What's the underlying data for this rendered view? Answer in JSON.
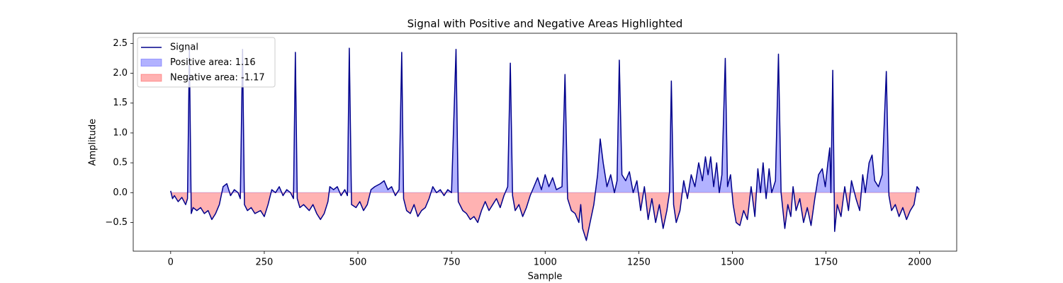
{
  "chart_data": {
    "type": "line",
    "title": "Signal with Positive and Negative Areas Highlighted",
    "x_label": "Sample",
    "y_label": "Amplitude",
    "x": [
      0,
      5,
      10,
      20,
      30,
      40,
      45,
      50,
      55,
      60,
      70,
      80,
      90,
      100,
      110,
      120,
      130,
      140,
      150,
      160,
      170,
      180,
      186,
      192,
      197,
      205,
      215,
      225,
      240,
      250,
      260,
      270,
      280,
      290,
      300,
      310,
      320,
      328,
      333,
      338,
      345,
      355,
      370,
      380,
      390,
      400,
      410,
      420,
      425,
      435,
      445,
      455,
      465,
      472,
      477,
      483,
      495,
      505,
      515,
      525,
      535,
      545,
      560,
      570,
      580,
      590,
      600,
      610,
      617,
      622,
      630,
      640,
      650,
      660,
      670,
      680,
      690,
      700,
      710,
      720,
      730,
      740,
      750,
      762,
      768,
      780,
      790,
      800,
      810,
      820,
      830,
      840,
      850,
      860,
      870,
      880,
      890,
      900,
      907,
      913,
      920,
      930,
      940,
      950,
      960,
      970,
      980,
      990,
      1000,
      1010,
      1020,
      1030,
      1045,
      1053,
      1060,
      1070,
      1080,
      1090,
      1095,
      1100,
      1110,
      1120,
      1130,
      1140,
      1147,
      1155,
      1165,
      1175,
      1185,
      1192,
      1198,
      1205,
      1215,
      1225,
      1235,
      1245,
      1255,
      1265,
      1275,
      1285,
      1295,
      1305,
      1315,
      1325,
      1332,
      1337,
      1343,
      1350,
      1360,
      1370,
      1380,
      1390,
      1400,
      1410,
      1420,
      1428,
      1435,
      1442,
      1450,
      1458,
      1465,
      1472,
      1481,
      1487,
      1495,
      1502,
      1510,
      1520,
      1530,
      1540,
      1550,
      1560,
      1568,
      1575,
      1582,
      1590,
      1598,
      1605,
      1615,
      1623,
      1630,
      1640,
      1648,
      1656,
      1662,
      1670,
      1680,
      1690,
      1700,
      1710,
      1720,
      1730,
      1740,
      1748,
      1755,
      1760,
      1763,
      1768,
      1773,
      1780,
      1790,
      1800,
      1810,
      1818,
      1830,
      1840,
      1848,
      1855,
      1865,
      1873,
      1880,
      1890,
      1900,
      1911,
      1918,
      1925,
      1935,
      1945,
      1955,
      1965,
      1975,
      1985,
      1993,
      1999
    ],
    "series": [
      {
        "name": "Signal",
        "color": "#00008b",
        "values": [
          0.03,
          -0.1,
          -0.05,
          -0.15,
          -0.08,
          -0.2,
          -0.1,
          2.4,
          -0.35,
          -0.25,
          -0.3,
          -0.25,
          -0.35,
          -0.3,
          -0.45,
          -0.35,
          -0.2,
          0.1,
          0.15,
          -0.05,
          0.05,
          0.0,
          -0.1,
          2.4,
          -0.2,
          -0.3,
          -0.25,
          -0.35,
          -0.3,
          -0.4,
          -0.2,
          0.05,
          0.0,
          0.1,
          -0.05,
          0.05,
          0.0,
          -0.1,
          2.35,
          -0.1,
          -0.25,
          -0.2,
          -0.3,
          -0.2,
          -0.35,
          -0.45,
          -0.35,
          -0.15,
          0.1,
          0.05,
          0.1,
          -0.05,
          0.05,
          -0.05,
          2.42,
          -0.2,
          -0.25,
          -0.15,
          -0.3,
          -0.2,
          0.05,
          0.1,
          0.15,
          0.2,
          0.05,
          0.1,
          -0.05,
          0.05,
          2.35,
          -0.1,
          -0.3,
          -0.35,
          -0.2,
          -0.4,
          -0.3,
          -0.25,
          -0.1,
          0.1,
          0.0,
          0.05,
          -0.05,
          0.05,
          0.0,
          2.4,
          -0.15,
          -0.3,
          -0.35,
          -0.45,
          -0.4,
          -0.5,
          -0.3,
          -0.15,
          -0.3,
          -0.2,
          -0.1,
          -0.25,
          -0.05,
          0.1,
          2.17,
          -0.05,
          -0.3,
          -0.2,
          -0.4,
          -0.25,
          -0.05,
          0.1,
          0.25,
          0.05,
          0.3,
          0.1,
          0.25,
          0.05,
          0.1,
          1.98,
          -0.1,
          -0.3,
          -0.35,
          -0.5,
          -0.2,
          -0.6,
          -0.8,
          -0.5,
          -0.2,
          0.3,
          0.9,
          0.5,
          0.1,
          0.3,
          0.0,
          0.2,
          2.22,
          0.3,
          0.2,
          0.35,
          0.0,
          0.2,
          -0.3,
          0.1,
          -0.45,
          -0.1,
          -0.5,
          -0.2,
          -0.6,
          -0.3,
          0.0,
          1.87,
          -0.2,
          -0.5,
          -0.3,
          0.2,
          -0.1,
          0.3,
          0.1,
          0.5,
          0.2,
          0.6,
          0.3,
          0.6,
          0.1,
          0.5,
          0.0,
          0.3,
          2.25,
          0.1,
          0.3,
          -0.2,
          -0.5,
          -0.55,
          -0.3,
          -0.45,
          0.1,
          -0.4,
          0.4,
          0.0,
          0.5,
          -0.1,
          0.4,
          0.0,
          0.2,
          2.32,
          0.0,
          -0.6,
          -0.2,
          -0.4,
          0.1,
          -0.3,
          -0.1,
          -0.5,
          -0.25,
          -0.55,
          -0.1,
          0.3,
          0.4,
          0.1,
          0.5,
          0.75,
          0.0,
          2.05,
          -0.65,
          -0.2,
          -0.4,
          0.1,
          -0.3,
          0.2,
          -0.1,
          -0.3,
          0.3,
          0.0,
          0.5,
          0.63,
          0.2,
          0.1,
          0.3,
          2.03,
          -0.05,
          -0.3,
          -0.2,
          -0.4,
          -0.25,
          -0.45,
          -0.3,
          -0.2,
          0.1,
          0.05
        ]
      },
      {
        "name": "Positive area: 1.16",
        "color": "blue"
      },
      {
        "name": "Negative area: -1.17",
        "color": "red"
      }
    ],
    "fill_alpha": 0.3,
    "xlim": [
      -99.95,
      2098.95
    ],
    "ylim": [
      -0.98,
      2.67
    ],
    "xticks": [
      0,
      250,
      500,
      750,
      1000,
      1250,
      1500,
      1750,
      2000
    ],
    "yticks": [
      {
        "value": -0.5,
        "label": "−0.5"
      },
      {
        "value": 0,
        "label": "0.0"
      },
      {
        "value": 0.5,
        "label": "0.5"
      },
      {
        "value": 1,
        "label": "1.0"
      },
      {
        "value": 1.5,
        "label": "1.5"
      },
      {
        "value": 2,
        "label": "2.0"
      },
      {
        "value": 2.5,
        "label": "2.5"
      }
    ],
    "legend": "upper left"
  }
}
